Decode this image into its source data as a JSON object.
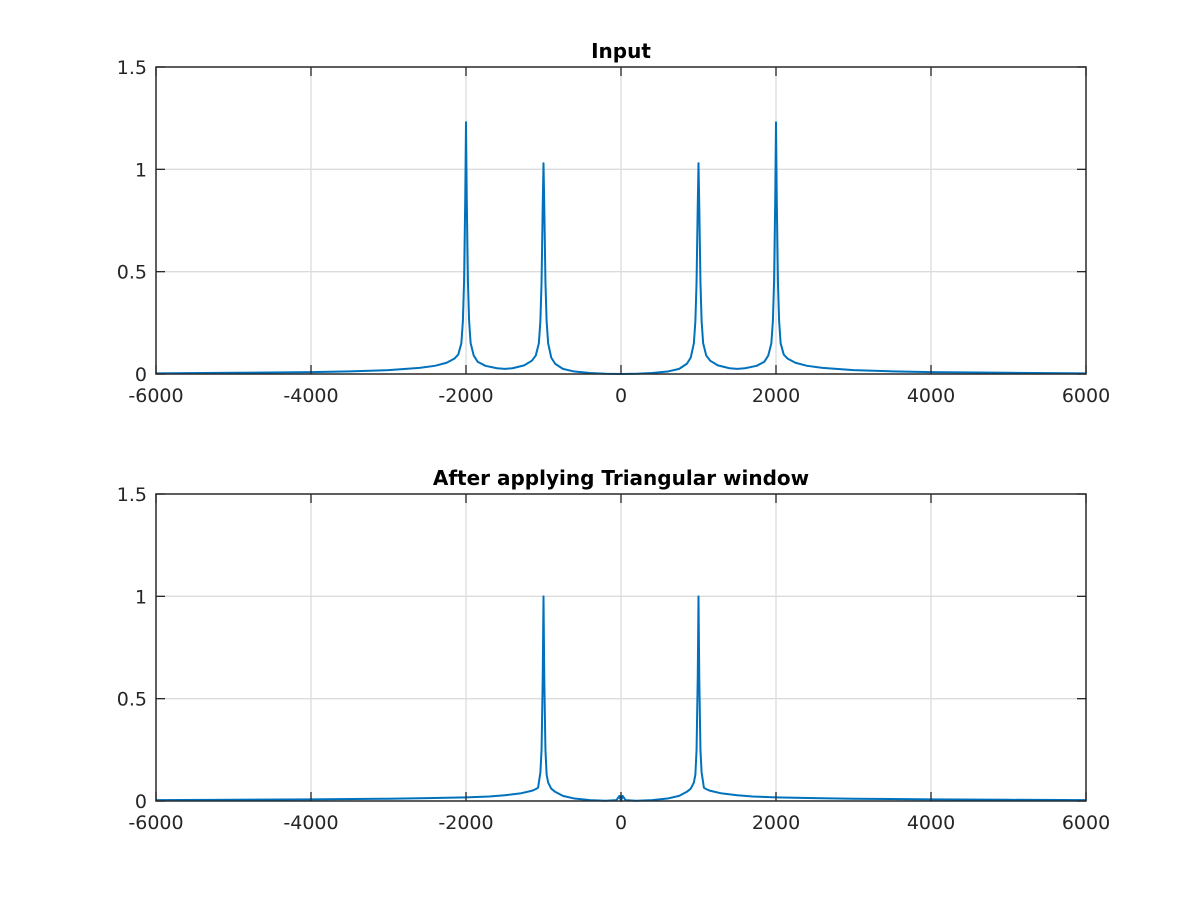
{
  "chart_data": [
    {
      "type": "line",
      "title": "Input",
      "xlabel": "",
      "ylabel": "",
      "xlim": [
        -6000,
        6000
      ],
      "ylim": [
        0,
        1.5
      ],
      "xticks": [
        -6000,
        -4000,
        -2000,
        0,
        2000,
        4000,
        6000
      ],
      "xtick_labels": [
        "-6000",
        "-4000",
        "-2000",
        "0",
        "2000",
        "4000",
        "6000"
      ],
      "yticks": [
        0,
        0.5,
        1,
        1.5
      ],
      "ytick_labels": [
        "0",
        "0.5",
        "1",
        "1.5"
      ],
      "grid": true,
      "series": [
        {
          "color": "#0072bd",
          "x": [
            -6000,
            -5000,
            -4000,
            -3500,
            -3000,
            -2600,
            -2400,
            -2250,
            -2150,
            -2100,
            -2060,
            -2040,
            -2025,
            -2010,
            -2000,
            -1990,
            -1975,
            -1960,
            -1940,
            -1900,
            -1850,
            -1750,
            -1600,
            -1500,
            -1400,
            -1250,
            -1150,
            -1100,
            -1060,
            -1040,
            -1025,
            -1010,
            -1000,
            -990,
            -975,
            -960,
            -940,
            -900,
            -850,
            -750,
            -600,
            -400,
            -200,
            0,
            200,
            400,
            600,
            750,
            850,
            900,
            940,
            960,
            975,
            990,
            1000,
            1010,
            1025,
            1040,
            1060,
            1100,
            1150,
            1250,
            1400,
            1500,
            1600,
            1750,
            1850,
            1900,
            1940,
            1960,
            1975,
            1990,
            2000,
            2010,
            2025,
            2040,
            2060,
            2100,
            2150,
            2250,
            2400,
            2600,
            3000,
            3500,
            4000,
            5000,
            6000
          ],
          "y": [
            0.003,
            0.006,
            0.009,
            0.013,
            0.019,
            0.03,
            0.04,
            0.055,
            0.075,
            0.095,
            0.15,
            0.26,
            0.45,
            0.85,
            1.23,
            0.85,
            0.45,
            0.26,
            0.15,
            0.09,
            0.06,
            0.04,
            0.028,
            0.025,
            0.028,
            0.042,
            0.065,
            0.09,
            0.15,
            0.26,
            0.45,
            0.82,
            1.03,
            0.82,
            0.45,
            0.26,
            0.15,
            0.08,
            0.05,
            0.025,
            0.012,
            0.005,
            0.001,
            0.0,
            0.001,
            0.005,
            0.012,
            0.025,
            0.05,
            0.08,
            0.15,
            0.26,
            0.45,
            0.82,
            1.03,
            0.82,
            0.45,
            0.26,
            0.15,
            0.09,
            0.065,
            0.042,
            0.028,
            0.025,
            0.028,
            0.04,
            0.06,
            0.09,
            0.15,
            0.26,
            0.45,
            0.85,
            1.23,
            0.85,
            0.45,
            0.26,
            0.15,
            0.095,
            0.075,
            0.055,
            0.04,
            0.03,
            0.019,
            0.013,
            0.009,
            0.006,
            0.003
          ]
        }
      ]
    },
    {
      "type": "line",
      "title": "After applying Triangular window",
      "xlabel": "",
      "ylabel": "",
      "xlim": [
        -6000,
        6000
      ],
      "ylim": [
        0,
        1.5
      ],
      "xticks": [
        -6000,
        -4000,
        -2000,
        0,
        2000,
        4000,
        6000
      ],
      "xtick_labels": [
        "-6000",
        "-4000",
        "-2000",
        "0",
        "2000",
        "4000",
        "6000"
      ],
      "yticks": [
        0,
        0.5,
        1,
        1.5
      ],
      "ytick_labels": [
        "0",
        "0.5",
        "1",
        "1.5"
      ],
      "grid": true,
      "series": [
        {
          "color": "#0072bd",
          "x": [
            -6000,
            -5000,
            -4000,
            -3000,
            -2500,
            -2000,
            -1700,
            -1500,
            -1300,
            -1150,
            -1100,
            -1070,
            -1040,
            -1025,
            -1010,
            -1000,
            -990,
            -975,
            -960,
            -940,
            -900,
            -850,
            -750,
            -600,
            -400,
            -200,
            -60,
            -20,
            0,
            20,
            60,
            200,
            400,
            600,
            750,
            850,
            900,
            940,
            960,
            975,
            990,
            1000,
            1010,
            1025,
            1040,
            1070,
            1100,
            1150,
            1300,
            1500,
            1700,
            2000,
            2500,
            3000,
            4000,
            5000,
            6000
          ],
          "y": [
            0.004,
            0.006,
            0.008,
            0.011,
            0.014,
            0.018,
            0.022,
            0.028,
            0.037,
            0.05,
            0.058,
            0.065,
            0.14,
            0.25,
            0.6,
            1.0,
            0.6,
            0.25,
            0.13,
            0.09,
            0.06,
            0.045,
            0.025,
            0.012,
            0.004,
            0.001,
            0.004,
            0.025,
            0.0,
            0.025,
            0.004,
            0.001,
            0.004,
            0.012,
            0.025,
            0.045,
            0.06,
            0.09,
            0.13,
            0.25,
            0.6,
            1.0,
            0.6,
            0.25,
            0.14,
            0.065,
            0.058,
            0.05,
            0.037,
            0.028,
            0.022,
            0.018,
            0.014,
            0.011,
            0.008,
            0.006,
            0.004
          ]
        }
      ]
    }
  ]
}
